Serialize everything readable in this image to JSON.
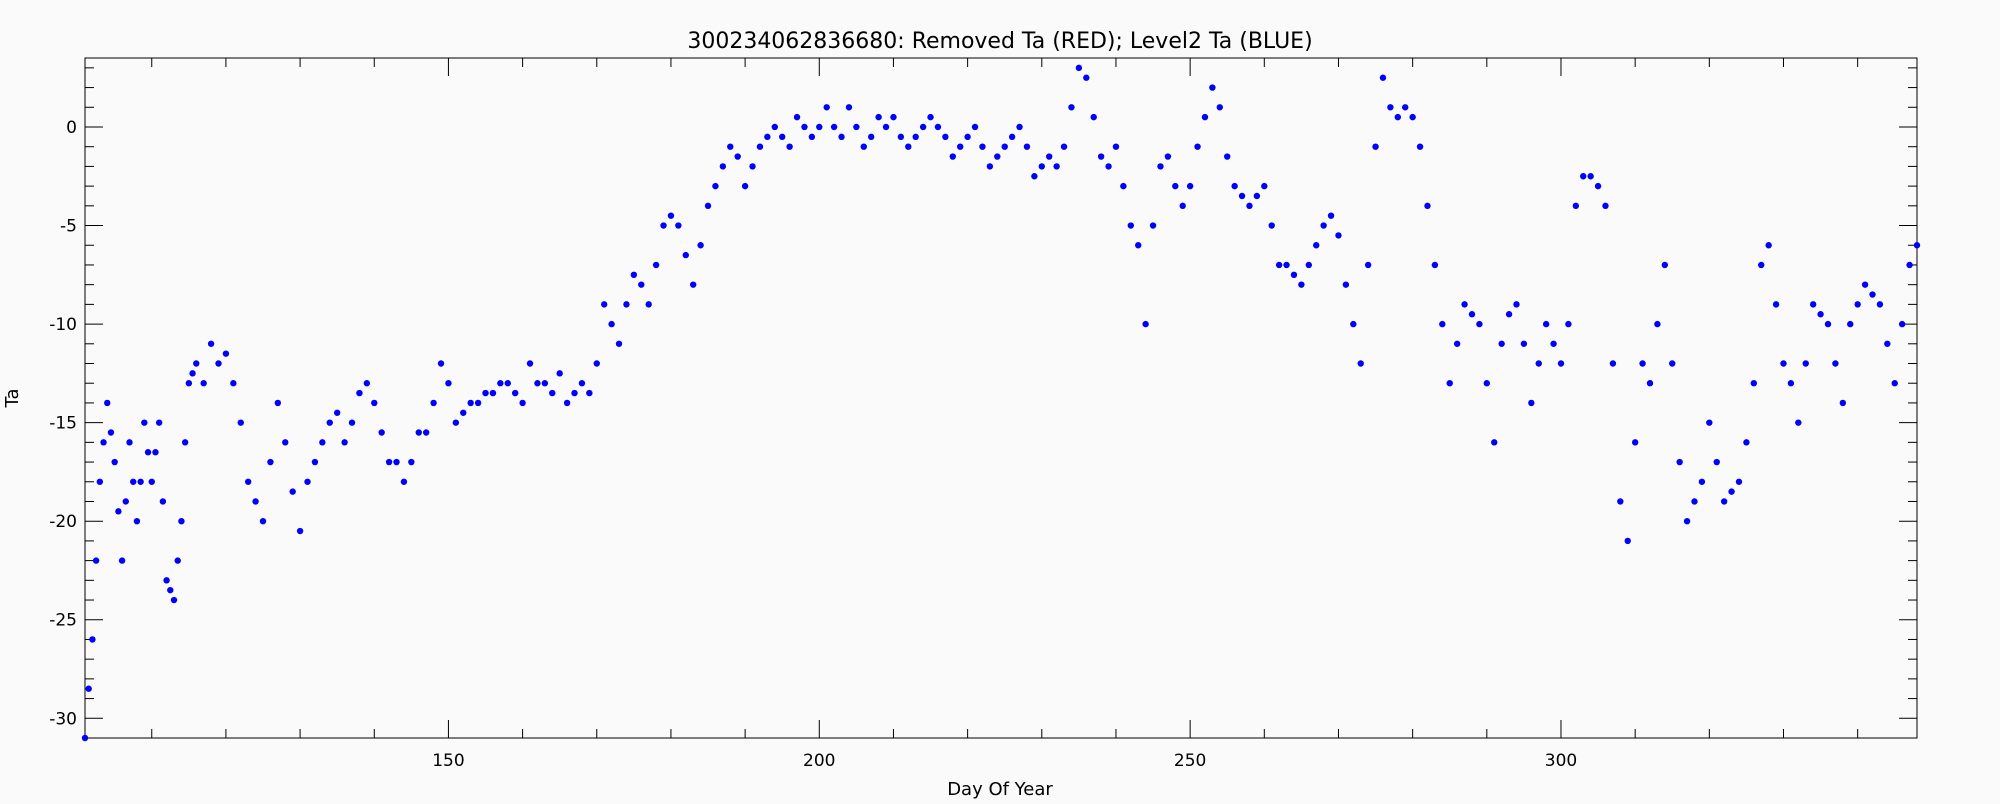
{
  "chart_data": {
    "type": "scatter",
    "title": "300234062836680: Removed Ta (RED); Level2 Ta (BLUE)",
    "xlabel": "Day Of Year",
    "ylabel": "Ta",
    "xlim": [
      101,
      348
    ],
    "ylim": [
      -31,
      3.5
    ],
    "xticks": [
      150,
      200,
      250,
      300
    ],
    "yticks": [
      0,
      -5,
      -10,
      -15,
      -20,
      -25,
      -30
    ],
    "grid": false,
    "legend": "none",
    "series": [
      {
        "color": "#0000ff",
        "points": [
          [
            101.0,
            -31.0
          ],
          [
            101.5,
            -28.5
          ],
          [
            102.0,
            -26.0
          ],
          [
            102.5,
            -22.0
          ],
          [
            103.0,
            -18.0
          ],
          [
            103.5,
            -16.0
          ],
          [
            104.0,
            -14.0
          ],
          [
            104.5,
            -15.5
          ],
          [
            105.0,
            -17.0
          ],
          [
            105.5,
            -19.5
          ],
          [
            106.0,
            -22.0
          ],
          [
            106.5,
            -19.0
          ],
          [
            107.0,
            -16.0
          ],
          [
            107.5,
            -18.0
          ],
          [
            108.0,
            -20.0
          ],
          [
            108.5,
            -18.0
          ],
          [
            109.0,
            -15.0
          ],
          [
            109.5,
            -16.5
          ],
          [
            110.0,
            -18.0
          ],
          [
            110.5,
            -16.5
          ],
          [
            111.0,
            -15.0
          ],
          [
            111.5,
            -19.0
          ],
          [
            112.0,
            -23.0
          ],
          [
            112.5,
            -23.5
          ],
          [
            113.0,
            -24.0
          ],
          [
            113.5,
            -22.0
          ],
          [
            114.0,
            -20.0
          ],
          [
            114.5,
            -16.0
          ],
          [
            115.0,
            -13.0
          ],
          [
            115.5,
            -12.5
          ],
          [
            116.0,
            -12.0
          ],
          [
            117.0,
            -13.0
          ],
          [
            118.0,
            -11.0
          ],
          [
            119.0,
            -12.0
          ],
          [
            120.0,
            -11.5
          ],
          [
            121.0,
            -13.0
          ],
          [
            122.0,
            -15.0
          ],
          [
            123.0,
            -18.0
          ],
          [
            124.0,
            -19.0
          ],
          [
            125.0,
            -20.0
          ],
          [
            126.0,
            -17.0
          ],
          [
            127.0,
            -14.0
          ],
          [
            128.0,
            -16.0
          ],
          [
            129.0,
            -18.5
          ],
          [
            130.0,
            -20.5
          ],
          [
            131.0,
            -18.0
          ],
          [
            132.0,
            -17.0
          ],
          [
            133.0,
            -16.0
          ],
          [
            134.0,
            -15.0
          ],
          [
            135.0,
            -14.5
          ],
          [
            136.0,
            -16.0
          ],
          [
            137.0,
            -15.0
          ],
          [
            138.0,
            -13.5
          ],
          [
            139.0,
            -13.0
          ],
          [
            140.0,
            -14.0
          ],
          [
            141.0,
            -15.5
          ],
          [
            142.0,
            -17.0
          ],
          [
            143.0,
            -17.0
          ],
          [
            144.0,
            -18.0
          ],
          [
            145.0,
            -17.0
          ],
          [
            146.0,
            -15.5
          ],
          [
            147.0,
            -15.5
          ],
          [
            148.0,
            -14.0
          ],
          [
            149.0,
            -12.0
          ],
          [
            150.0,
            -13.0
          ],
          [
            151.0,
            -15.0
          ],
          [
            152.0,
            -14.5
          ],
          [
            153.0,
            -14.0
          ],
          [
            154.0,
            -14.0
          ],
          [
            155.0,
            -13.5
          ],
          [
            156.0,
            -13.5
          ],
          [
            157.0,
            -13.0
          ],
          [
            158.0,
            -13.0
          ],
          [
            159.0,
            -13.5
          ],
          [
            160.0,
            -14.0
          ],
          [
            161.0,
            -12.0
          ],
          [
            162.0,
            -13.0
          ],
          [
            163.0,
            -13.0
          ],
          [
            164.0,
            -13.5
          ],
          [
            165.0,
            -12.5
          ],
          [
            166.0,
            -14.0
          ],
          [
            167.0,
            -13.5
          ],
          [
            168.0,
            -13.0
          ],
          [
            169.0,
            -13.5
          ],
          [
            170.0,
            -12.0
          ],
          [
            171.0,
            -9.0
          ],
          [
            172.0,
            -10.0
          ],
          [
            173.0,
            -11.0
          ],
          [
            174.0,
            -9.0
          ],
          [
            175.0,
            -7.5
          ],
          [
            176.0,
            -8.0
          ],
          [
            177.0,
            -9.0
          ],
          [
            178.0,
            -7.0
          ],
          [
            179.0,
            -5.0
          ],
          [
            180.0,
            -4.5
          ],
          [
            181.0,
            -5.0
          ],
          [
            182.0,
            -6.5
          ],
          [
            183.0,
            -8.0
          ],
          [
            184.0,
            -6.0
          ],
          [
            185.0,
            -4.0
          ],
          [
            186.0,
            -3.0
          ],
          [
            187.0,
            -2.0
          ],
          [
            188.0,
            -1.0
          ],
          [
            189.0,
            -1.5
          ],
          [
            190.0,
            -3.0
          ],
          [
            191.0,
            -2.0
          ],
          [
            192.0,
            -1.0
          ],
          [
            193.0,
            -0.5
          ],
          [
            194.0,
            0.0
          ],
          [
            195.0,
            -0.5
          ],
          [
            196.0,
            -1.0
          ],
          [
            197.0,
            0.5
          ],
          [
            198.0,
            0.0
          ],
          [
            199.0,
            -0.5
          ],
          [
            200.0,
            0.0
          ],
          [
            201.0,
            1.0
          ],
          [
            202.0,
            0.0
          ],
          [
            203.0,
            -0.5
          ],
          [
            204.0,
            1.0
          ],
          [
            205.0,
            0.0
          ],
          [
            206.0,
            -1.0
          ],
          [
            207.0,
            -0.5
          ],
          [
            208.0,
            0.5
          ],
          [
            209.0,
            0.0
          ],
          [
            210.0,
            0.5
          ],
          [
            211.0,
            -0.5
          ],
          [
            212.0,
            -1.0
          ],
          [
            213.0,
            -0.5
          ],
          [
            214.0,
            0.0
          ],
          [
            215.0,
            0.5
          ],
          [
            216.0,
            0.0
          ],
          [
            217.0,
            -0.5
          ],
          [
            218.0,
            -1.5
          ],
          [
            219.0,
            -1.0
          ],
          [
            220.0,
            -0.5
          ],
          [
            221.0,
            0.0
          ],
          [
            222.0,
            -1.0
          ],
          [
            223.0,
            -2.0
          ],
          [
            224.0,
            -1.5
          ],
          [
            225.0,
            -1.0
          ],
          [
            226.0,
            -0.5
          ],
          [
            227.0,
            0.0
          ],
          [
            228.0,
            -1.0
          ],
          [
            229.0,
            -2.5
          ],
          [
            230.0,
            -2.0
          ],
          [
            231.0,
            -1.5
          ],
          [
            232.0,
            -2.0
          ],
          [
            233.0,
            -1.0
          ],
          [
            234.0,
            1.0
          ],
          [
            235.0,
            3.0
          ],
          [
            236.0,
            2.5
          ],
          [
            237.0,
            0.5
          ],
          [
            238.0,
            -1.5
          ],
          [
            239.0,
            -2.0
          ],
          [
            240.0,
            -1.0
          ],
          [
            241.0,
            -3.0
          ],
          [
            242.0,
            -5.0
          ],
          [
            243.0,
            -6.0
          ],
          [
            244.0,
            -10.0
          ],
          [
            245.0,
            -5.0
          ],
          [
            246.0,
            -2.0
          ],
          [
            247.0,
            -1.5
          ],
          [
            248.0,
            -3.0
          ],
          [
            249.0,
            -4.0
          ],
          [
            250.0,
            -3.0
          ],
          [
            251.0,
            -1.0
          ],
          [
            252.0,
            0.5
          ],
          [
            253.0,
            2.0
          ],
          [
            254.0,
            1.0
          ],
          [
            255.0,
            -1.5
          ],
          [
            256.0,
            -3.0
          ],
          [
            257.0,
            -3.5
          ],
          [
            258.0,
            -4.0
          ],
          [
            259.0,
            -3.5
          ],
          [
            260.0,
            -3.0
          ],
          [
            261.0,
            -5.0
          ],
          [
            262.0,
            -7.0
          ],
          [
            263.0,
            -7.0
          ],
          [
            264.0,
            -7.5
          ],
          [
            265.0,
            -8.0
          ],
          [
            266.0,
            -7.0
          ],
          [
            267.0,
            -6.0
          ],
          [
            268.0,
            -5.0
          ],
          [
            269.0,
            -4.5
          ],
          [
            270.0,
            -5.5
          ],
          [
            271.0,
            -8.0
          ],
          [
            272.0,
            -10.0
          ],
          [
            273.0,
            -12.0
          ],
          [
            274.0,
            -7.0
          ],
          [
            275.0,
            -1.0
          ],
          [
            276.0,
            2.5
          ],
          [
            277.0,
            1.0
          ],
          [
            278.0,
            0.5
          ],
          [
            279.0,
            1.0
          ],
          [
            280.0,
            0.5
          ],
          [
            281.0,
            -1.0
          ],
          [
            282.0,
            -4.0
          ],
          [
            283.0,
            -7.0
          ],
          [
            284.0,
            -10.0
          ],
          [
            285.0,
            -13.0
          ],
          [
            286.0,
            -11.0
          ],
          [
            287.0,
            -9.0
          ],
          [
            288.0,
            -9.5
          ],
          [
            289.0,
            -10.0
          ],
          [
            290.0,
            -13.0
          ],
          [
            291.0,
            -16.0
          ],
          [
            292.0,
            -11.0
          ],
          [
            293.0,
            -9.5
          ],
          [
            294.0,
            -9.0
          ],
          [
            295.0,
            -11.0
          ],
          [
            296.0,
            -14.0
          ],
          [
            297.0,
            -12.0
          ],
          [
            298.0,
            -10.0
          ],
          [
            299.0,
            -11.0
          ],
          [
            300.0,
            -12.0
          ],
          [
            301.0,
            -10.0
          ],
          [
            302.0,
            -4.0
          ],
          [
            303.0,
            -2.5
          ],
          [
            304.0,
            -2.5
          ],
          [
            305.0,
            -3.0
          ],
          [
            306.0,
            -4.0
          ],
          [
            307.0,
            -12.0
          ],
          [
            308.0,
            -19.0
          ],
          [
            309.0,
            -21.0
          ],
          [
            310.0,
            -16.0
          ],
          [
            311.0,
            -12.0
          ],
          [
            312.0,
            -13.0
          ],
          [
            313.0,
            -10.0
          ],
          [
            314.0,
            -7.0
          ],
          [
            315.0,
            -12.0
          ],
          [
            316.0,
            -17.0
          ],
          [
            317.0,
            -20.0
          ],
          [
            318.0,
            -19.0
          ],
          [
            319.0,
            -18.0
          ],
          [
            320.0,
            -15.0
          ],
          [
            321.0,
            -17.0
          ],
          [
            322.0,
            -19.0
          ],
          [
            323.0,
            -18.5
          ],
          [
            324.0,
            -18.0
          ],
          [
            325.0,
            -16.0
          ],
          [
            326.0,
            -13.0
          ],
          [
            327.0,
            -7.0
          ],
          [
            328.0,
            -6.0
          ],
          [
            329.0,
            -9.0
          ],
          [
            330.0,
            -12.0
          ],
          [
            331.0,
            -13.0
          ],
          [
            332.0,
            -15.0
          ],
          [
            333.0,
            -12.0
          ],
          [
            334.0,
            -9.0
          ],
          [
            335.0,
            -9.5
          ],
          [
            336.0,
            -10.0
          ],
          [
            337.0,
            -12.0
          ],
          [
            338.0,
            -14.0
          ],
          [
            339.0,
            -10.0
          ],
          [
            340.0,
            -9.0
          ],
          [
            341.0,
            -8.0
          ],
          [
            342.0,
            -8.5
          ],
          [
            343.0,
            -9.0
          ],
          [
            344.0,
            -11.0
          ],
          [
            345.0,
            -13.0
          ],
          [
            346.0,
            -10.0
          ],
          [
            347.0,
            -7.0
          ],
          [
            348.0,
            -6.0
          ]
        ]
      }
    ]
  }
}
